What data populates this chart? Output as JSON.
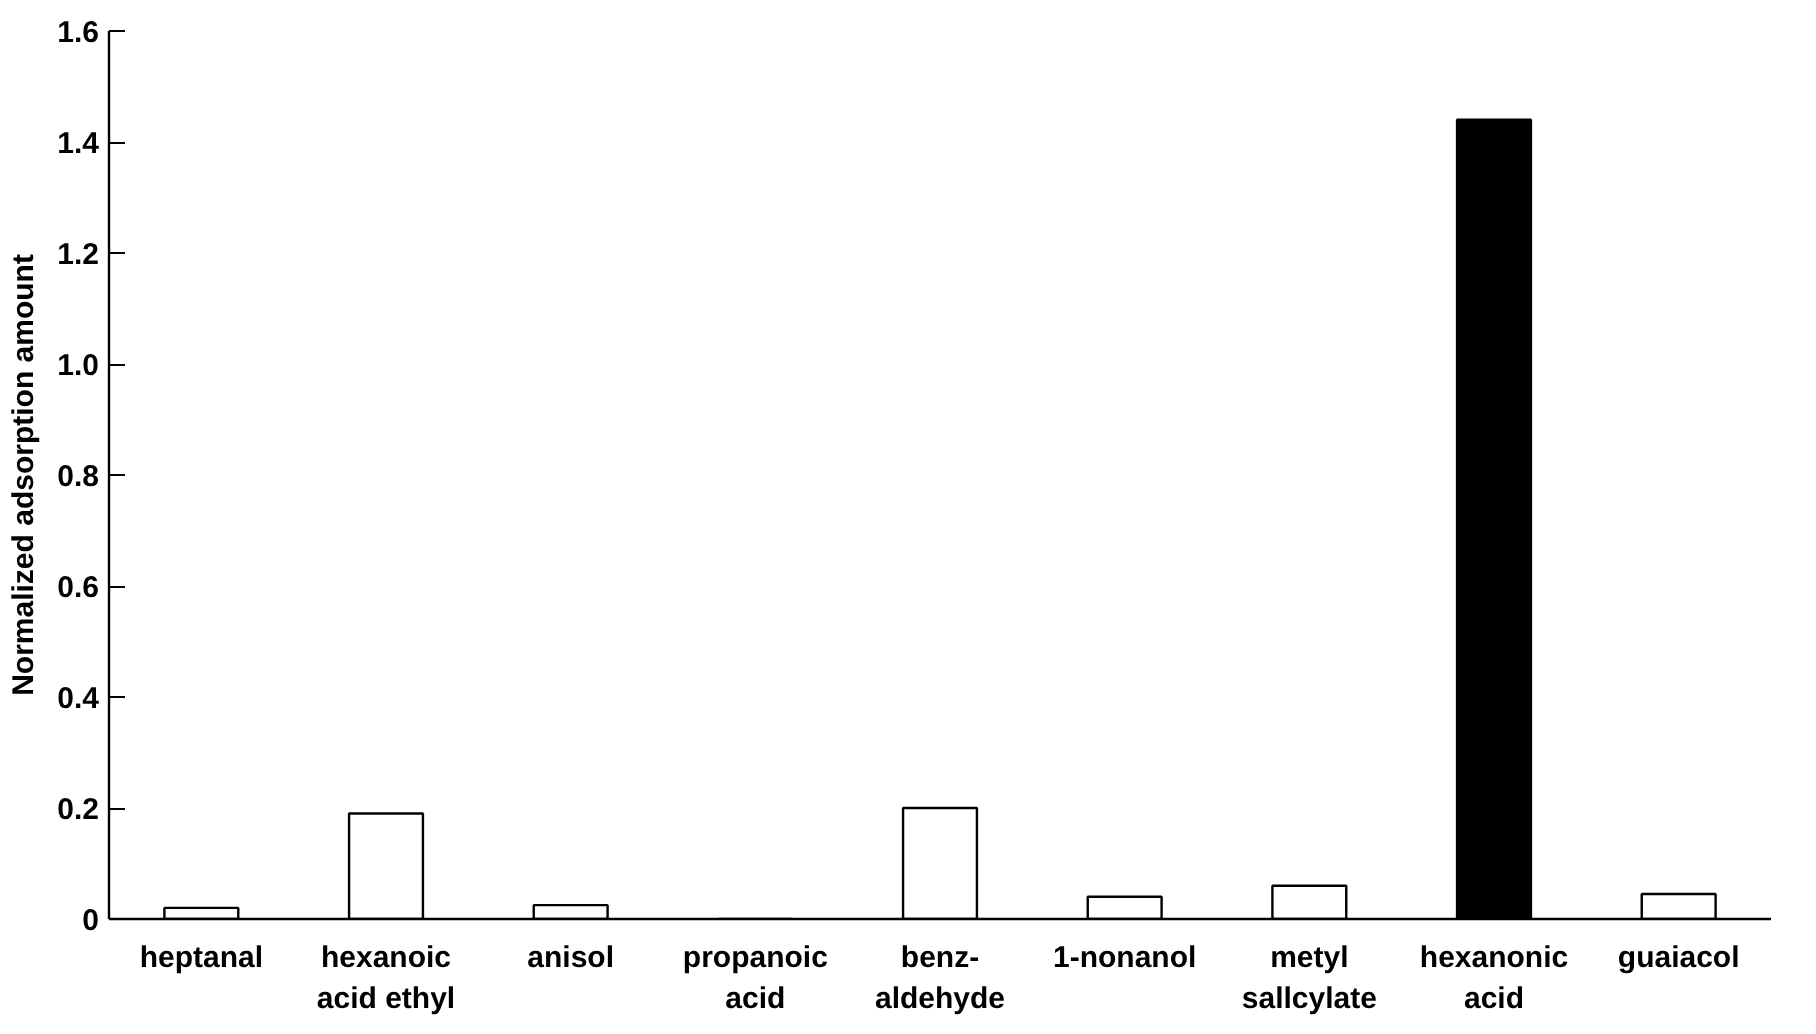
{
  "chart_data": {
    "type": "bar",
    "ylabel": "Normalized adsorption amount",
    "categories": [
      "heptanal",
      "hexanoic acid ethyl",
      "anisol",
      "propanoic acid",
      "benz-aldehyde",
      "1-nonanol",
      "metyl sallcylate",
      "hexanonic acid",
      "guaiacol"
    ],
    "values": [
      0.02,
      0.19,
      0.025,
      0,
      0.2,
      0.04,
      0.06,
      1.44,
      0.045
    ],
    "colors": [
      "#ffffff",
      "#ffffff",
      "#ffffff",
      "#ffffff",
      "#ffffff",
      "#ffffff",
      "#ffffff",
      "#000000",
      "#ffffff"
    ],
    "ylim": [
      0,
      1.6
    ],
    "yticks": [
      0,
      0.2,
      0.4,
      0.6,
      0.8,
      {
        "value": 1.0,
        "label": "1.0"
      },
      1.2,
      1.4,
      1.6
    ],
    "grid": false
  }
}
